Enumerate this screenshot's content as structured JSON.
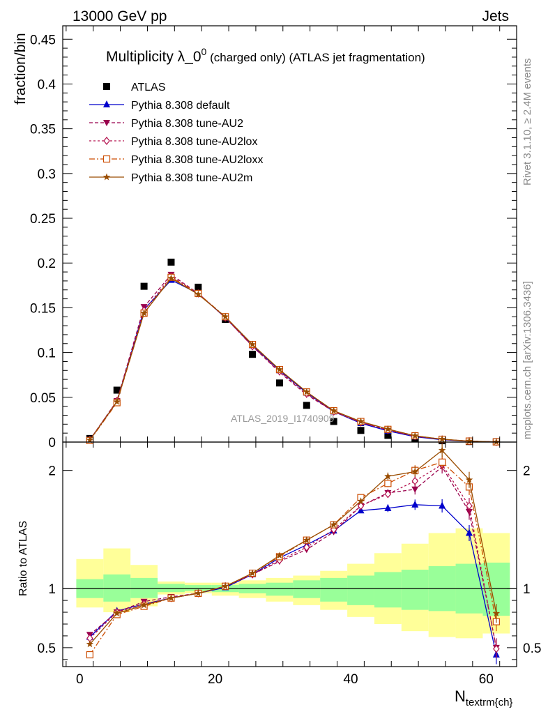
{
  "header": {
    "left": "13000 GeV pp",
    "right": "Jets"
  },
  "side_labels": {
    "rivet": "Rivet 3.1.10, ≥ 2.4M events",
    "mcplots": "mcplots.cern.ch [arXiv:1306.3436]"
  },
  "colors": {
    "atlas": "#000000",
    "default": "#0000cc",
    "au2": "#99004d",
    "au2lox": "#b3104d",
    "au2loxx": "#cc4c00",
    "au2m": "#994c00",
    "band_inner": "#99ff99",
    "band_outer": "#ffff99"
  },
  "chart_data": [
    {
      "type": "scatter",
      "panel": "main",
      "title_main": "Multiplicity λ_0",
      "title_sup": "0",
      "title_rest": " (charged only) (ATLAS jet fragmentation)",
      "watermark": "ATLAS_2019_I1740909",
      "ylabel": "fraction/bin",
      "xlim": [
        -2.5,
        64.5
      ],
      "ylim": [
        0,
        0.465
      ],
      "x_ticks": [
        0,
        20,
        40,
        60
      ],
      "y_ticks": [
        "0",
        "0.05",
        "0.1",
        "0.15",
        "0.2",
        "0.25",
        "0.3",
        "0.35",
        "0.4",
        "0.45"
      ],
      "legend_position": "top-left",
      "x": [
        1.5,
        5.5,
        9.5,
        13.5,
        17.5,
        21.5,
        25.5,
        29.5,
        33.5,
        37.5,
        41.5,
        45.5,
        49.5,
        53.5,
        57.5,
        61.5
      ],
      "series": [
        {
          "name": "ATLAS",
          "key": "atlas",
          "marker": "square",
          "dash": "",
          "values": [
            0.004,
            0.058,
            0.174,
            0.201,
            0.173,
            0.137,
            0.098,
            0.066,
            0.041,
            0.023,
            0.013,
            0.0075,
            0.0035,
            0.0015,
            0.0006,
            0.0003
          ]
        },
        {
          "name": "Pythia 8.308 default",
          "key": "default",
          "marker": "triangle-up",
          "dash": "",
          "values": [
            0.0025,
            0.045,
            0.148,
            0.181,
            0.166,
            0.139,
            0.108,
            0.08,
            0.055,
            0.034,
            0.021,
            0.0125,
            0.006,
            0.0026,
            0.0009,
            0.00015
          ]
        },
        {
          "name": "Pythia 8.308 tune-AU2",
          "key": "au2",
          "marker": "triangle-down",
          "dash": "5,3",
          "values": [
            0.0025,
            0.046,
            0.151,
            0.187,
            0.166,
            0.139,
            0.107,
            0.078,
            0.053,
            0.034,
            0.022,
            0.0135,
            0.0064,
            0.0031,
            0.001,
            0.00015
          ]
        },
        {
          "name": "Pythia 8.308 tune-AU2lox",
          "key": "au2lox",
          "marker": "diamond",
          "dash": "3,3",
          "values": [
            0.0025,
            0.046,
            0.147,
            0.185,
            0.166,
            0.139,
            0.107,
            0.079,
            0.054,
            0.034,
            0.022,
            0.0135,
            0.0067,
            0.003,
            0.001,
            0.00015
          ]
        },
        {
          "name": "Pythia 8.308 tune-AU2loxx",
          "key": "au2loxx",
          "marker": "open-square",
          "dash": "8,3,2,3",
          "values": [
            0.0017,
            0.044,
            0.144,
            0.184,
            0.166,
            0.14,
            0.109,
            0.081,
            0.056,
            0.035,
            0.023,
            0.0142,
            0.007,
            0.0031,
            0.0011,
            0.00021
          ]
        },
        {
          "name": "Pythia 8.308 tune-AU2m",
          "key": "au2m",
          "marker": "star",
          "dash": "",
          "values": [
            0.0023,
            0.045,
            0.144,
            0.183,
            0.165,
            0.14,
            0.109,
            0.081,
            0.056,
            0.035,
            0.023,
            0.0145,
            0.007,
            0.0032,
            0.0011,
            0.00015
          ]
        }
      ]
    },
    {
      "type": "scatter",
      "panel": "ratio",
      "ylabel": "Ratio to ATLAS",
      "xlabel": "N",
      "xlabel_sub": "textrm{ch}",
      "xlim": [
        -2.5,
        64.5
      ],
      "ylim": [
        0.34,
        2.24
      ],
      "x_ticks": [
        0,
        20,
        40,
        60
      ],
      "y_ticks": [
        0.5,
        1,
        2
      ],
      "bands": {
        "edges": [
          -0.5,
          3.5,
          7.5,
          11.5,
          15.5,
          19.5,
          23.5,
          27.5,
          31.5,
          35.5,
          39.5,
          43.5,
          47.5,
          51.5,
          55.5,
          59.5,
          63.5
        ],
        "inner": [
          [
            0.92,
            1.08
          ],
          [
            0.89,
            1.12
          ],
          [
            0.92,
            1.09
          ],
          [
            0.97,
            1.04
          ],
          [
            0.98,
            1.03
          ],
          [
            0.97,
            1.03
          ],
          [
            0.96,
            1.04
          ],
          [
            0.94,
            1.05
          ],
          [
            0.92,
            1.07
          ],
          [
            0.89,
            1.09
          ],
          [
            0.86,
            1.11
          ],
          [
            0.84,
            1.14
          ],
          [
            0.82,
            1.16
          ],
          [
            0.81,
            1.19
          ],
          [
            0.79,
            1.21
          ],
          [
            0.77,
            1.22
          ]
        ],
        "outer": [
          [
            0.84,
            1.25
          ],
          [
            0.8,
            1.34
          ],
          [
            0.85,
            1.2
          ],
          [
            0.95,
            1.06
          ],
          [
            0.96,
            1.05
          ],
          [
            0.94,
            1.05
          ],
          [
            0.92,
            1.07
          ],
          [
            0.89,
            1.09
          ],
          [
            0.86,
            1.11
          ],
          [
            0.82,
            1.15
          ],
          [
            0.76,
            1.21
          ],
          [
            0.7,
            1.3
          ],
          [
            0.64,
            1.38
          ],
          [
            0.59,
            1.47
          ],
          [
            0.58,
            1.51
          ],
          [
            0.62,
            1.47
          ]
        ]
      },
      "x": [
        1.5,
        5.5,
        9.5,
        13.5,
        17.5,
        21.5,
        25.5,
        29.5,
        33.5,
        37.5,
        41.5,
        45.5,
        49.5,
        53.5,
        57.5,
        61.5
      ],
      "series": [
        {
          "name": "Pythia 8.308 default",
          "key": "default",
          "marker": "triangle-up",
          "dash": "",
          "values": [
            0.59,
            0.81,
            0.87,
            0.92,
            0.96,
            1.01,
            1.12,
            1.26,
            1.37,
            1.49,
            1.66,
            1.68,
            1.71,
            1.7,
            1.47,
            0.44
          ]
        },
        {
          "name": "Pythia 8.308 tune-AU2",
          "key": "au2",
          "marker": "triangle-down",
          "dash": "5,3",
          "values": [
            0.61,
            0.8,
            0.89,
            0.93,
            0.96,
            1.02,
            1.12,
            1.23,
            1.33,
            1.48,
            1.7,
            1.81,
            1.84,
            2.03,
            1.65,
            0.5
          ]
        },
        {
          "name": "Pythia 8.308 tune-AU2lox",
          "key": "au2lox",
          "marker": "diamond",
          "dash": "3,3",
          "values": [
            0.58,
            0.8,
            0.87,
            0.92,
            0.96,
            1.02,
            1.12,
            1.24,
            1.35,
            1.5,
            1.7,
            1.8,
            1.91,
            2.05,
            1.7,
            0.49
          ]
        },
        {
          "name": "Pythia 8.308 tune-AU2loxx",
          "key": "au2loxx",
          "marker": "open-square",
          "dash": "8,3,2,3",
          "values": [
            0.44,
            0.78,
            0.85,
            0.92,
            0.96,
            1.02,
            1.13,
            1.27,
            1.41,
            1.54,
            1.77,
            1.89,
            2.0,
            2.07,
            1.86,
            0.72
          ]
        },
        {
          "name": "Pythia 8.308 tune-AU2m",
          "key": "au2m",
          "marker": "star",
          "dash": "",
          "values": [
            0.53,
            0.79,
            0.86,
            0.92,
            0.96,
            1.02,
            1.13,
            1.28,
            1.41,
            1.54,
            1.74,
            1.95,
            1.99,
            2.17,
            1.92,
            0.79
          ]
        }
      ]
    }
  ]
}
